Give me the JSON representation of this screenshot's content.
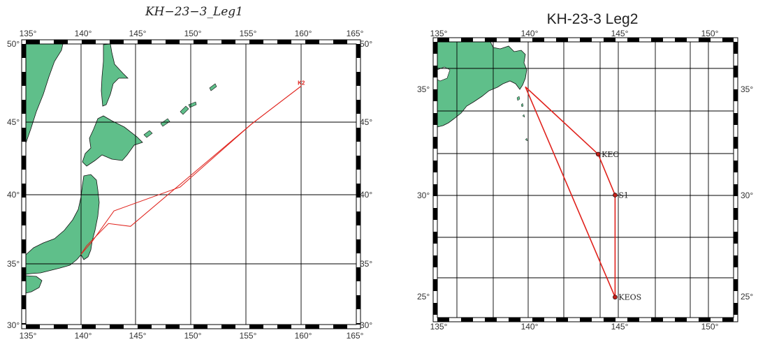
{
  "colors": {
    "land": "#5fbf8a",
    "track": "#e0221c",
    "grid": "#000000",
    "station": "#c0201a"
  },
  "map1": {
    "title": "KH−23−3_Leg1",
    "lon_ticks": [
      "135°",
      "140°",
      "145°",
      "150°",
      "155°",
      "160°",
      "165°"
    ],
    "lat_ticks": [
      "30°",
      "35°",
      "40°",
      "45°",
      "50°"
    ],
    "lon_range": [
      135,
      165
    ],
    "lat_range": [
      30,
      50
    ],
    "stations": [
      {
        "name": "K2",
        "lon": 160,
        "lat": 47
      }
    ],
    "tracks": [
      {
        "points": [
          [
            140.0,
            35.0
          ],
          [
            140.5,
            35.6
          ],
          [
            142.5,
            37.2
          ],
          [
            144.5,
            37.0
          ],
          [
            155.5,
            44.3
          ],
          [
            160.0,
            47.0
          ]
        ]
      },
      {
        "points": [
          [
            140.0,
            35.0
          ],
          [
            141.0,
            35.9
          ],
          [
            143.0,
            38.1
          ],
          [
            149.0,
            39.8
          ],
          [
            155.5,
            44.3
          ],
          [
            160.0,
            47.0
          ]
        ]
      }
    ]
  },
  "map2": {
    "title": "KH-23-3 Leg2",
    "lon_ticks": [
      "135°",
      "140°",
      "145°",
      "150°"
    ],
    "lat_ticks": [
      "25°",
      "30°",
      "35°"
    ],
    "lon_range": [
      134.5,
      152
    ],
    "lat_range": [
      24,
      37.5
    ],
    "stations": [
      {
        "name": "KEO",
        "lon": 144,
        "lat": 32
      },
      {
        "name": "S1",
        "lon": 145,
        "lat": 30
      },
      {
        "name": "KEOS",
        "lon": 145,
        "lat": 25
      }
    ],
    "track": [
      [
        139.7,
        35.3
      ],
      [
        144,
        32
      ],
      [
        145,
        30
      ],
      [
        145,
        25
      ],
      [
        139.7,
        35.3
      ]
    ]
  }
}
